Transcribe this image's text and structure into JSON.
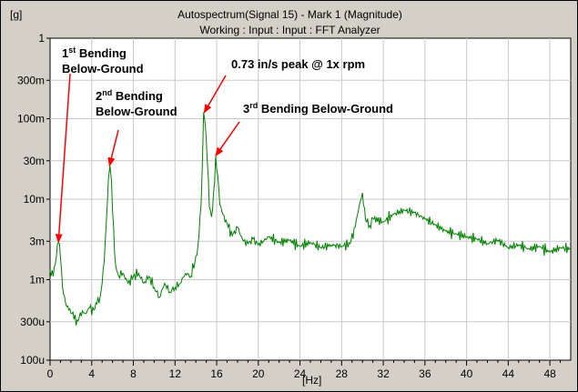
{
  "header": {
    "y_unit": "[g]",
    "title": "Autospectrum(Signal 15) - Mark 1 (Magnitude)",
    "subtitle": "Working : Input : Input : FFT Analyzer",
    "x_unit": "[Hz]"
  },
  "colors": {
    "background": "#d4d0c8",
    "plot_bg": "#ffffff",
    "grid": "#c8c8c8",
    "trace": "#008000",
    "annotation": "#ff0000",
    "annotation_text": "#000000"
  },
  "annotations": [
    {
      "id": "first-bending",
      "lines": [
        {
          "base": "1",
          "sup": "st",
          "rest": " Bending"
        },
        {
          "base": "Below-Ground"
        }
      ],
      "target_x": 0.8,
      "target_y": 0.0027
    },
    {
      "id": "second-bending",
      "lines": [
        {
          "base": "2",
          "sup": "nd",
          "rest": " Bending"
        },
        {
          "base": "Below-Ground"
        }
      ],
      "target_x": 5.7,
      "target_y": 0.024
    },
    {
      "id": "peak-speed",
      "lines": [
        {
          "base": "0.73 in/s peak @ 1x rpm"
        }
      ],
      "target_x": 14.8,
      "target_y": 0.11
    },
    {
      "id": "third-bending",
      "lines": [
        {
          "base": "3",
          "sup": "rd",
          "rest": " Bending Below-Ground"
        }
      ],
      "target_x": 15.9,
      "target_y": 0.032
    }
  ],
  "chart_data": {
    "type": "line",
    "title": "Autospectrum(Signal 15) - Mark 1 (Magnitude)",
    "subtitle": "Working : Input : Input : FFT Analyzer",
    "xlabel": "[Hz]",
    "ylabel": "[g]",
    "xlim": [
      0,
      50
    ],
    "ylim": [
      0.0001,
      1
    ],
    "yscale": "log",
    "grid": true,
    "x_ticks": [
      0,
      4,
      8,
      12,
      16,
      20,
      24,
      28,
      32,
      36,
      40,
      44,
      48
    ],
    "y_ticks": [
      {
        "value": 1,
        "label": "1"
      },
      {
        "value": 0.3,
        "label": "300m"
      },
      {
        "value": 0.1,
        "label": "100m"
      },
      {
        "value": 0.03,
        "label": "30m"
      },
      {
        "value": 0.01,
        "label": "10m"
      },
      {
        "value": 0.003,
        "label": "3m"
      },
      {
        "value": 0.001,
        "label": "1m"
      },
      {
        "value": 0.0003,
        "label": "300u"
      },
      {
        "value": 0.0001,
        "label": "100u"
      }
    ],
    "series": [
      {
        "points": [
          [
            0.0,
            0.0013
          ],
          [
            0.3,
            0.0011
          ],
          [
            0.6,
            0.0019
          ],
          [
            0.8,
            0.0029
          ],
          [
            1.0,
            0.0019
          ],
          [
            1.2,
            0.0008
          ],
          [
            1.5,
            0.0005
          ],
          [
            1.8,
            0.00042
          ],
          [
            2.1,
            0.00038
          ],
          [
            2.3,
            0.00032
          ],
          [
            2.5,
            0.00027
          ],
          [
            2.8,
            0.00034
          ],
          [
            3.1,
            0.00041
          ],
          [
            3.4,
            0.00038
          ],
          [
            3.8,
            0.00045
          ],
          [
            4.2,
            0.00042
          ],
          [
            4.5,
            0.0005
          ],
          [
            4.8,
            0.0006
          ],
          [
            5.0,
            0.0009
          ],
          [
            5.2,
            0.0017
          ],
          [
            5.4,
            0.0052
          ],
          [
            5.6,
            0.018
          ],
          [
            5.75,
            0.026
          ],
          [
            5.9,
            0.017
          ],
          [
            6.1,
            0.0045
          ],
          [
            6.3,
            0.0015
          ],
          [
            6.6,
            0.0011
          ],
          [
            7.0,
            0.0012
          ],
          [
            7.5,
            0.0009
          ],
          [
            8.0,
            0.0011
          ],
          [
            8.5,
            0.0012
          ],
          [
            9.0,
            0.0009
          ],
          [
            9.5,
            0.0011
          ],
          [
            10.0,
            0.0008
          ],
          [
            10.5,
            0.0006
          ],
          [
            11.0,
            0.0009
          ],
          [
            11.5,
            0.0007
          ],
          [
            12.0,
            0.0008
          ],
          [
            12.5,
            0.0009
          ],
          [
            13.0,
            0.0012
          ],
          [
            13.5,
            0.0011
          ],
          [
            13.9,
            0.0016
          ],
          [
            14.2,
            0.0026
          ],
          [
            14.5,
            0.0085
          ],
          [
            14.75,
            0.12
          ],
          [
            14.9,
            0.085
          ],
          [
            15.1,
            0.03
          ],
          [
            15.3,
            0.008
          ],
          [
            15.5,
            0.006
          ],
          [
            15.7,
            0.012
          ],
          [
            15.9,
            0.034
          ],
          [
            16.1,
            0.02
          ],
          [
            16.3,
            0.0085
          ],
          [
            16.6,
            0.0065
          ],
          [
            17.0,
            0.005
          ],
          [
            17.5,
            0.0035
          ],
          [
            18.0,
            0.0045
          ],
          [
            18.5,
            0.0031
          ],
          [
            19.0,
            0.0028
          ],
          [
            19.5,
            0.0032
          ],
          [
            20.0,
            0.0027
          ],
          [
            21.0,
            0.0034
          ],
          [
            22.0,
            0.0029
          ],
          [
            23.0,
            0.0031
          ],
          [
            24.0,
            0.0026
          ],
          [
            25.0,
            0.0029
          ],
          [
            26.0,
            0.0025
          ],
          [
            27.0,
            0.0027
          ],
          [
            28.0,
            0.0026
          ],
          [
            28.8,
            0.0028
          ],
          [
            29.3,
            0.0045
          ],
          [
            29.7,
            0.0085
          ],
          [
            30.0,
            0.012
          ],
          [
            30.3,
            0.0055
          ],
          [
            30.7,
            0.0047
          ],
          [
            31.0,
            0.0058
          ],
          [
            32.0,
            0.0052
          ],
          [
            33.0,
            0.0065
          ],
          [
            34.0,
            0.0073
          ],
          [
            35.0,
            0.0068
          ],
          [
            36.0,
            0.0057
          ],
          [
            37.0,
            0.0048
          ],
          [
            38.0,
            0.004
          ],
          [
            39.0,
            0.0037
          ],
          [
            40.0,
            0.0034
          ],
          [
            41.0,
            0.0032
          ],
          [
            42.0,
            0.0028
          ],
          [
            43.0,
            0.0031
          ],
          [
            44.0,
            0.0025
          ],
          [
            45.0,
            0.0027
          ],
          [
            46.0,
            0.0024
          ],
          [
            47.0,
            0.0026
          ],
          [
            48.0,
            0.0022
          ],
          [
            49.0,
            0.0025
          ],
          [
            50.0,
            0.0024
          ]
        ]
      }
    ]
  }
}
